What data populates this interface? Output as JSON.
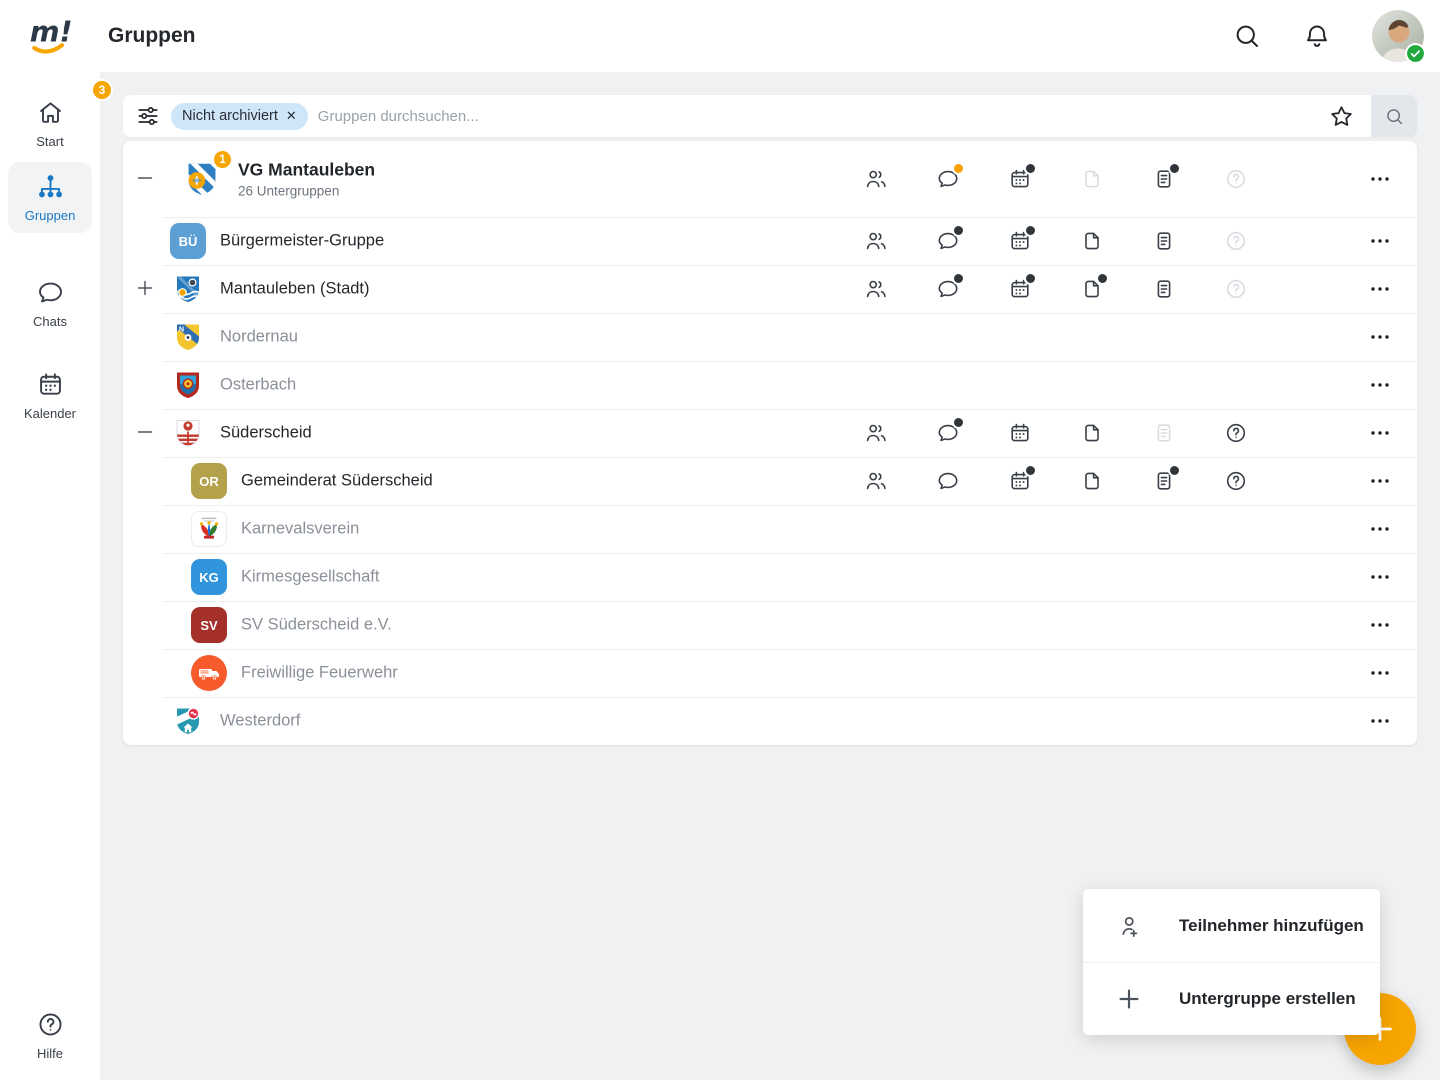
{
  "colors": {
    "accent_orange": "#F7A500",
    "active_blue": "#1B79C4",
    "chip_bg": "#CFE6F9",
    "text_dark": "#23272C",
    "text_muted": "#8A9099",
    "icon_active": "#3A4047",
    "icon_disabled": "#D9DCE0",
    "dot_dark": "#30353C",
    "dot_orange": "#F9A100"
  },
  "header": {
    "logo_text": "m!",
    "title": "Gruppen",
    "icons": [
      "search-icon",
      "bell-icon"
    ],
    "avatar_status": "online"
  },
  "sidebar": {
    "items": [
      {
        "label": "Start",
        "icon": "home-icon",
        "badge": "3",
        "active": false
      },
      {
        "label": "Gruppen",
        "icon": "hierarchy-icon",
        "active": true
      },
      {
        "label": "Chats",
        "icon": "chat-icon",
        "active": false
      },
      {
        "label": "Kalender",
        "icon": "calendar-icon",
        "active": false
      }
    ],
    "bottom_item": {
      "label": "Hilfe",
      "icon": "help-icon"
    }
  },
  "search": {
    "filter_chip": "Nicht archiviert",
    "chip_close": "✕",
    "placeholder": "Gruppen durchsuchen..."
  },
  "groups": {
    "rows": [
      {
        "name": "VG Mantauleben",
        "subtitle": "26 Untergruppen",
        "level": 0,
        "expander": "minus",
        "badge": "1",
        "style": "bold",
        "avatar": {
          "kind": "crest",
          "crest": "vg-mantauleben"
        },
        "actions": [
          {
            "icon": "members",
            "state": "active",
            "dot": null
          },
          {
            "icon": "chat",
            "state": "active",
            "dot": "orange"
          },
          {
            "icon": "calendar",
            "state": "active",
            "dot": "dark"
          },
          {
            "icon": "files",
            "state": "disabled",
            "dot": null
          },
          {
            "icon": "notes",
            "state": "active",
            "dot": "dark"
          },
          {
            "icon": "help",
            "state": "disabled",
            "dot": null
          }
        ]
      },
      {
        "name": "Bürgermeister-Gruppe",
        "level": 1,
        "style": "dark",
        "avatar": {
          "kind": "initials",
          "text": "BÜ",
          "color": "#5B9FD4"
        },
        "actions": [
          {
            "icon": "members",
            "state": "active",
            "dot": null
          },
          {
            "icon": "chat",
            "state": "active",
            "dot": "dark"
          },
          {
            "icon": "calendar",
            "state": "active",
            "dot": "dark"
          },
          {
            "icon": "files",
            "state": "active",
            "dot": null
          },
          {
            "icon": "notes",
            "state": "active",
            "dot": null
          },
          {
            "icon": "help",
            "state": "disabled",
            "dot": null
          }
        ]
      },
      {
        "name": "Mantauleben (Stadt)",
        "level": 1,
        "expander": "plus",
        "style": "dark",
        "avatar": {
          "kind": "crest",
          "crest": "mantauleben-stadt"
        },
        "actions": [
          {
            "icon": "members",
            "state": "active",
            "dot": null
          },
          {
            "icon": "chat",
            "state": "active",
            "dot": "dark"
          },
          {
            "icon": "calendar",
            "state": "active",
            "dot": "dark"
          },
          {
            "icon": "files",
            "state": "active",
            "dot": "dark"
          },
          {
            "icon": "notes",
            "state": "active",
            "dot": null
          },
          {
            "icon": "help",
            "state": "disabled",
            "dot": null
          }
        ]
      },
      {
        "name": "Nordernau",
        "level": 1,
        "style": "muted",
        "avatar": {
          "kind": "crest",
          "crest": "nordernau"
        },
        "actions": []
      },
      {
        "name": "Osterbach",
        "level": 1,
        "style": "muted",
        "avatar": {
          "kind": "crest",
          "crest": "osterbach"
        },
        "actions": []
      },
      {
        "name": "Süderscheid",
        "level": 1,
        "expander": "minus",
        "style": "dark",
        "avatar": {
          "kind": "crest",
          "crest": "suederscheid"
        },
        "actions": [
          {
            "icon": "members",
            "state": "active",
            "dot": null
          },
          {
            "icon": "chat",
            "state": "active",
            "dot": "dark"
          },
          {
            "icon": "calendar",
            "state": "active",
            "dot": null
          },
          {
            "icon": "files",
            "state": "active",
            "dot": null
          },
          {
            "icon": "notes",
            "state": "disabled",
            "dot": null
          },
          {
            "icon": "help",
            "state": "active",
            "dot": null
          }
        ]
      },
      {
        "name": "Gemeinderat Süderscheid",
        "level": 2,
        "style": "dark",
        "avatar": {
          "kind": "initials",
          "text": "OR",
          "color": "#B3A14B"
        },
        "actions": [
          {
            "icon": "members",
            "state": "active",
            "dot": null
          },
          {
            "icon": "chat",
            "state": "active",
            "dot": null
          },
          {
            "icon": "calendar",
            "state": "active",
            "dot": "dark"
          },
          {
            "icon": "files",
            "state": "active",
            "dot": null
          },
          {
            "icon": "notes",
            "state": "active",
            "dot": "dark"
          },
          {
            "icon": "help",
            "state": "active",
            "dot": null
          }
        ]
      },
      {
        "name": "Karnevalsverein",
        "level": 2,
        "style": "muted",
        "avatar": {
          "kind": "crest",
          "crest": "karneval"
        },
        "actions": []
      },
      {
        "name": "Kirmesgesellschaft",
        "level": 2,
        "style": "muted",
        "avatar": {
          "kind": "initials",
          "text": "KG",
          "color": "#3095DD"
        },
        "actions": []
      },
      {
        "name": "SV Süderscheid e.V.",
        "level": 2,
        "style": "muted",
        "avatar": {
          "kind": "initials",
          "text": "SV",
          "color": "#A5302A"
        },
        "actions": []
      },
      {
        "name": "Freiwillige Feuerwehr",
        "level": 2,
        "style": "muted",
        "avatar": {
          "kind": "crest",
          "crest": "firetruck"
        },
        "actions": []
      },
      {
        "name": "Westerdorf",
        "level": 1,
        "style": "muted",
        "avatar": {
          "kind": "crest",
          "crest": "westerdorf"
        },
        "actions": []
      }
    ]
  },
  "fab_menu": {
    "items": [
      {
        "label": "Teilnehmer hinzufügen",
        "icon": "person-plus-icon"
      },
      {
        "label": "Untergruppe erstellen",
        "icon": "plus-icon"
      }
    ]
  },
  "fab": {
    "icon": "plus-icon"
  }
}
